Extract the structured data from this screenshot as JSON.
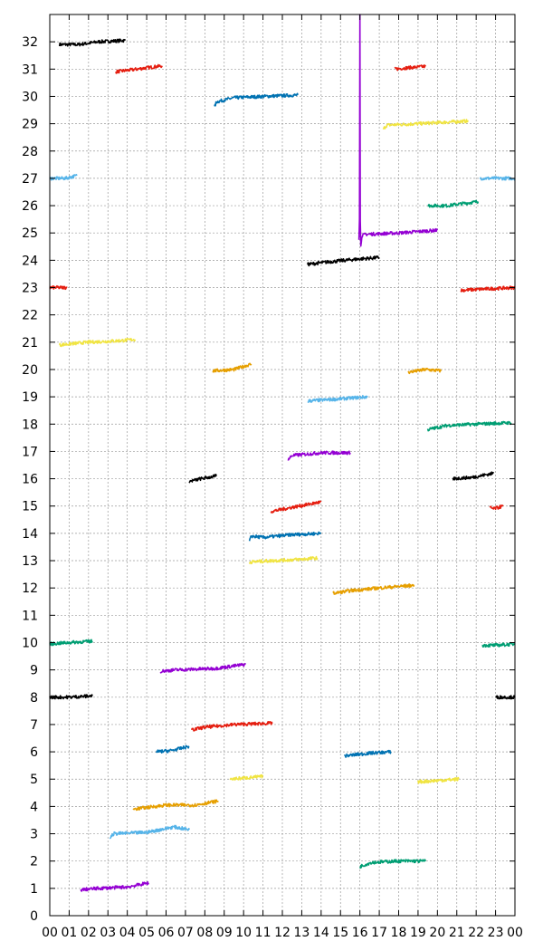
{
  "chart_data": {
    "type": "line",
    "title": "",
    "xlabel": "",
    "ylabel": "",
    "xlim": [
      0,
      24
    ],
    "ylim": [
      0,
      33
    ],
    "x_tick_labels": [
      "00",
      "01",
      "02",
      "03",
      "04",
      "05",
      "06",
      "07",
      "08",
      "09",
      "10",
      "11",
      "12",
      "13",
      "14",
      "15",
      "16",
      "17",
      "18",
      "19",
      "20",
      "21",
      "22",
      "23",
      "00"
    ],
    "y_tick_labels": [
      "0",
      "1",
      "2",
      "3",
      "4",
      "5",
      "6",
      "7",
      "8",
      "9",
      "10",
      "11",
      "12",
      "13",
      "14",
      "15",
      "16",
      "17",
      "18",
      "19",
      "20",
      "21",
      "22",
      "23",
      "24",
      "25",
      "26",
      "27",
      "28",
      "29",
      "30",
      "31",
      "32"
    ],
    "grid": true,
    "legend": "none",
    "series": [
      {
        "color": "#000000",
        "x": [
          0.5,
          1.5,
          2.5,
          3.9
        ],
        "y": [
          31.9,
          31.9,
          32.0,
          32.05
        ]
      },
      {
        "color": "#e51e10",
        "x": [
          3.4,
          4.5,
          5.8
        ],
        "y": [
          30.9,
          31.0,
          31.12
        ]
      },
      {
        "color": "#0072b2",
        "x": [
          8.5,
          8.6,
          9.5,
          11.0,
          12.8
        ],
        "y": [
          29.6,
          29.8,
          29.95,
          30.0,
          30.05
        ]
      },
      {
        "color": "#e51e10",
        "x": [
          17.8,
          18.5,
          19.4
        ],
        "y": [
          31.0,
          31.05,
          31.1
        ]
      },
      {
        "color": "#f0e442",
        "x": [
          17.2,
          17.4,
          19.0,
          21.6
        ],
        "y": [
          28.8,
          28.95,
          29.0,
          29.1
        ]
      },
      {
        "color": "#56b4e9",
        "x": [
          0.0,
          0.8,
          1.4
        ],
        "y": [
          27.0,
          27.0,
          27.1
        ]
      },
      {
        "color": "#56b4e9",
        "x": [
          22.2,
          23.0,
          24.0
        ],
        "y": [
          27.0,
          27.0,
          27.0
        ]
      },
      {
        "color": "#009e73",
        "x": [
          19.5,
          20.5,
          22.1
        ],
        "y": [
          26.0,
          26.0,
          26.15
        ]
      },
      {
        "color": "#9400d3",
        "x": [
          15.95,
          15.98,
          16.0,
          16.02,
          16.05,
          16.1,
          16.3,
          18.0,
          20.0
        ],
        "y": [
          24.8,
          25.5,
          33.0,
          25.5,
          24.5,
          24.9,
          24.95,
          25.0,
          25.1
        ]
      },
      {
        "color": "#000000",
        "x": [
          13.3,
          14.5,
          16.0,
          17.0
        ],
        "y": [
          23.85,
          23.95,
          24.05,
          24.1
        ]
      },
      {
        "color": "#e51e10",
        "x": [
          0.0,
          0.5,
          0.9
        ],
        "y": [
          23.0,
          23.0,
          23.0
        ]
      },
      {
        "color": "#e51e10",
        "x": [
          21.2,
          22.5,
          24.0
        ],
        "y": [
          22.9,
          22.95,
          23.0
        ]
      },
      {
        "color": "#f0e442",
        "x": [
          0.5,
          2.0,
          3.5,
          4.4
        ],
        "y": [
          20.9,
          21.0,
          21.05,
          21.1
        ]
      },
      {
        "color": "#e69f00",
        "x": [
          8.4,
          9.5,
          10.4
        ],
        "y": [
          19.95,
          20.0,
          20.2
        ]
      },
      {
        "color": "#e69f00",
        "x": [
          18.5,
          19.4,
          20.2
        ],
        "y": [
          19.9,
          20.0,
          19.95
        ]
      },
      {
        "color": "#56b4e9",
        "x": [
          13.3,
          13.35,
          14.5,
          16.4
        ],
        "y": [
          18.8,
          18.85,
          18.9,
          19.0
        ]
      },
      {
        "color": "#009e73",
        "x": [
          19.5,
          20.5,
          22.0,
          23.8
        ],
        "y": [
          17.8,
          17.95,
          18.0,
          18.05
        ]
      },
      {
        "color": "#9400d3",
        "x": [
          12.3,
          12.5,
          14.0,
          15.5
        ],
        "y": [
          16.7,
          16.85,
          16.95,
          16.95
        ]
      },
      {
        "color": "#000000",
        "x": [
          7.2,
          7.8,
          8.6
        ],
        "y": [
          15.9,
          16.0,
          16.1
        ]
      },
      {
        "color": "#000000",
        "x": [
          20.8,
          21.8,
          22.9
        ],
        "y": [
          16.0,
          16.05,
          16.2
        ]
      },
      {
        "color": "#e51e10",
        "x": [
          11.4,
          12.5,
          14.0
        ],
        "y": [
          14.8,
          14.95,
          15.15
        ]
      },
      {
        "color": "#e51e10",
        "x": [
          22.7,
          22.9,
          23.4
        ],
        "y": [
          14.95,
          14.9,
          15.0
        ]
      },
      {
        "color": "#0072b2",
        "x": [
          10.3,
          10.4,
          11.0,
          12.5,
          14.0
        ],
        "y": [
          13.7,
          13.9,
          13.85,
          13.95,
          14.0
        ]
      },
      {
        "color": "#f0e442",
        "x": [
          10.3,
          11.5,
          13.0,
          13.8
        ],
        "y": [
          12.95,
          13.0,
          13.05,
          13.1
        ]
      },
      {
        "color": "#e69f00",
        "x": [
          14.6,
          15.5,
          17.0,
          18.8
        ],
        "y": [
          11.8,
          11.9,
          12.0,
          12.1
        ]
      },
      {
        "color": "#009e73",
        "x": [
          0.0,
          1.0,
          2.2
        ],
        "y": [
          9.95,
          10.0,
          10.05
        ]
      },
      {
        "color": "#009e73",
        "x": [
          22.3,
          23.0,
          24.0
        ],
        "y": [
          9.9,
          9.9,
          9.95
        ]
      },
      {
        "color": "#9400d3",
        "x": [
          5.7,
          6.5,
          8.5,
          10.1
        ],
        "y": [
          8.95,
          9.0,
          9.05,
          9.2
        ]
      },
      {
        "color": "#000000",
        "x": [
          0.0,
          1.0,
          2.2
        ],
        "y": [
          8.0,
          8.0,
          8.05
        ]
      },
      {
        "color": "#000000",
        "x": [
          23.0,
          23.5,
          24.0
        ],
        "y": [
          8.0,
          8.0,
          8.0
        ]
      },
      {
        "color": "#e51e10",
        "x": [
          7.3,
          8.0,
          9.5,
          11.5
        ],
        "y": [
          6.8,
          6.9,
          7.0,
          7.05
        ]
      },
      {
        "color": "#0072b2",
        "x": [
          5.5,
          6.3,
          7.2
        ],
        "y": [
          6.0,
          6.05,
          6.2
        ]
      },
      {
        "color": "#0072b2",
        "x": [
          15.2,
          16.5,
          17.6
        ],
        "y": [
          5.85,
          5.95,
          6.0
        ]
      },
      {
        "color": "#f0e442",
        "x": [
          9.3,
          10.2,
          11.0
        ],
        "y": [
          5.0,
          5.05,
          5.1
        ]
      },
      {
        "color": "#f0e442",
        "x": [
          19.0,
          20.0,
          21.1
        ],
        "y": [
          4.9,
          4.95,
          5.0
        ]
      },
      {
        "color": "#e69f00",
        "x": [
          4.3,
          6.0,
          7.5,
          8.7
        ],
        "y": [
          3.9,
          4.05,
          4.05,
          4.2
        ]
      },
      {
        "color": "#56b4e9",
        "x": [
          3.1,
          3.3,
          5.0,
          6.4,
          7.2
        ],
        "y": [
          2.85,
          3.0,
          3.05,
          3.25,
          3.15
        ]
      },
      {
        "color": "#009e73",
        "x": [
          16.0,
          16.6,
          18.0,
          19.4
        ],
        "y": [
          1.8,
          1.95,
          2.0,
          2.0
        ]
      },
      {
        "color": "#9400d3",
        "x": [
          1.6,
          2.5,
          4.0,
          5.1
        ],
        "y": [
          0.95,
          1.0,
          1.05,
          1.2
        ]
      }
    ]
  }
}
